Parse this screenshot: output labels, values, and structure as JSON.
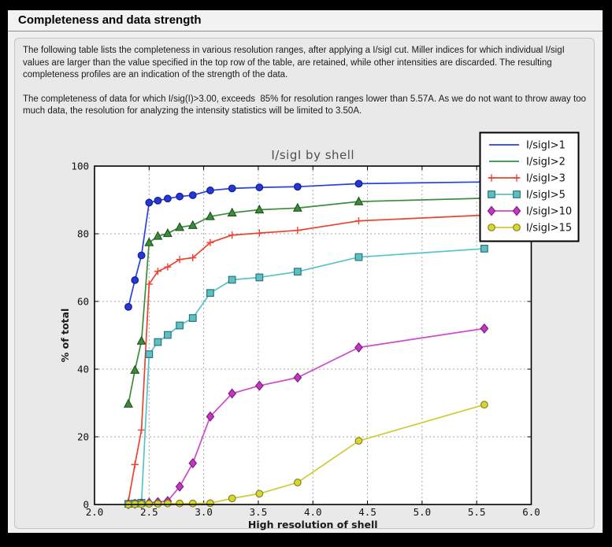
{
  "window": {
    "title": "Completeness and data strength"
  },
  "intro": {
    "paragraph1": "The following table lists the completeness in various resolution ranges, after applying a I/sigI cut. Miller indices for which individual I/sigI values are larger than the value specified in the top row of the table, are retained, while other intensities are discarded. The resulting completeness profiles are an indication of the strength of the data.",
    "paragraph2": "The completeness of data for which I/sig(I)>3.00, exceeds  85% for resolution ranges lower than 5.57A. As we do not want to throw away too much data, the resolution for analyzing the intensity statistics will be limited to 3.50A."
  },
  "chart_data": {
    "type": "line",
    "title": "I/sigI by shell",
    "xlabel": "High resolution of shell",
    "ylabel": "% of total",
    "xlim": [
      2.0,
      6.0
    ],
    "ylim": [
      0,
      100
    ],
    "xtick_values": [
      2.0,
      2.5,
      3.0,
      3.5,
      4.0,
      4.5,
      5.0,
      5.5,
      6.0
    ],
    "xtick_labels": [
      "2.0",
      "2.5",
      "3.0",
      "3.5",
      "4.0",
      "4.5",
      "5.0",
      "5.5",
      "6.0"
    ],
    "ytick_values": [
      0,
      20,
      40,
      60,
      80,
      100
    ],
    "ytick_labels": [
      "0",
      "20",
      "40",
      "60",
      "80",
      "100"
    ],
    "grid": true,
    "legend_position": "upper right",
    "x": [
      2.31,
      2.37,
      2.43,
      2.5,
      2.58,
      2.67,
      2.78,
      2.9,
      3.06,
      3.26,
      3.51,
      3.86,
      4.42,
      5.57
    ],
    "series": [
      {
        "name": "I/sigI>1",
        "color": "#2a3fe1",
        "marker": "circle",
        "marker_fill": "#2438d8",
        "marker_edge": "#151d8c",
        "legend_marker": false,
        "values": [
          58.4,
          66.3,
          73.6,
          89.2,
          89.8,
          90.4,
          91.0,
          91.4,
          92.8,
          93.4,
          93.7,
          93.9,
          94.8,
          95.3
        ]
      },
      {
        "name": "I/sigI>2",
        "color": "#3b8d3b",
        "marker": "triangle",
        "marker_fill": "#3b8d3b",
        "marker_edge": "#20571f",
        "legend_marker": false,
        "values": [
          29.7,
          39.7,
          48.3,
          77.4,
          79.3,
          80.1,
          81.9,
          82.5,
          85.1,
          86.2,
          87.1,
          87.6,
          89.5,
          90.5
        ]
      },
      {
        "name": "I/sigI>3",
        "color": "#ee4130",
        "marker": "plus",
        "marker_fill": "none",
        "marker_edge": "#ee4130",
        "legend_marker": true,
        "values": [
          1.0,
          11.8,
          22.0,
          65.1,
          68.9,
          70.2,
          72.4,
          72.9,
          77.4,
          79.6,
          80.2,
          81.0,
          83.8,
          85.5
        ]
      },
      {
        "name": "I/sigI>5",
        "color": "#56c4c7",
        "marker": "square",
        "marker_fill": "#5ec0c3",
        "marker_edge": "#28787b",
        "legend_marker": true,
        "values": [
          0.2,
          0.3,
          0.5,
          44.4,
          48.0,
          50.1,
          52.9,
          55.1,
          62.5,
          66.4,
          67.1,
          68.8,
          73.1,
          75.6
        ]
      },
      {
        "name": "I/sigI>10",
        "color": "#cd49cd",
        "marker": "diamond",
        "marker_fill": "#c337c3",
        "marker_edge": "#7c217c",
        "legend_marker": true,
        "values": [
          0.1,
          0.2,
          0.3,
          0.5,
          0.7,
          1.0,
          5.3,
          12.2,
          26.0,
          32.8,
          35.1,
          37.5,
          46.4,
          52.0
        ]
      },
      {
        "name": "I/sigI>15",
        "color": "#cccc33",
        "marker": "circle",
        "marker_fill": "#d6d636",
        "marker_edge": "#85851c",
        "legend_marker": true,
        "values": [
          0.0,
          0.1,
          0.1,
          0.2,
          0.2,
          0.3,
          0.3,
          0.3,
          0.4,
          1.8,
          3.2,
          6.5,
          18.8,
          29.5
        ]
      }
    ]
  }
}
